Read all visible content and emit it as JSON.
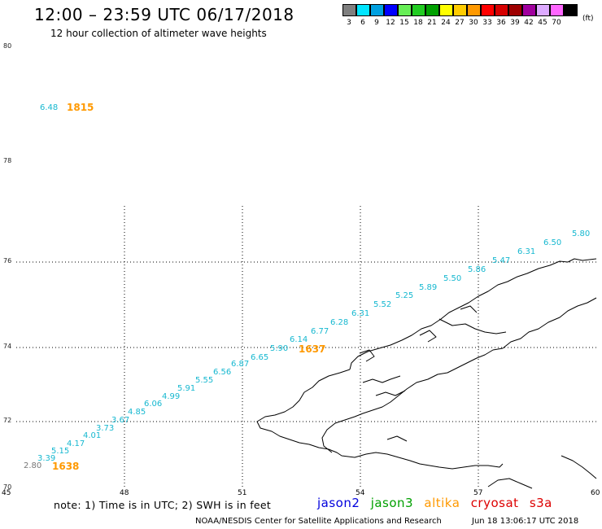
{
  "header": {
    "title": "12:00 – 23:59 UTC 06/17/2018",
    "subtitle": "12 hour collection of altimeter wave heights"
  },
  "legend_scale": {
    "swatches": [
      {
        "color": "#7f7f7f",
        "label": "3"
      },
      {
        "color": "#00e5ff",
        "label": "6"
      },
      {
        "color": "#00a0e0",
        "label": "9"
      },
      {
        "color": "#0000ff",
        "label": "12"
      },
      {
        "color": "#66ee55",
        "label": "15"
      },
      {
        "color": "#22cc22",
        "label": "18"
      },
      {
        "color": "#00a000",
        "label": "21"
      },
      {
        "color": "#ffff00",
        "label": "24"
      },
      {
        "color": "#ffcc00",
        "label": "27"
      },
      {
        "color": "#ff9900",
        "label": "30"
      },
      {
        "color": "#ff0000",
        "label": "33"
      },
      {
        "color": "#d60000",
        "label": "36"
      },
      {
        "color": "#9e0000",
        "label": "39"
      },
      {
        "color": "#a0009e",
        "label": "42"
      },
      {
        "color": "#ddaaff",
        "label": "45"
      },
      {
        "color": "#ff66ff",
        "label": "70"
      },
      {
        "color": "#000000",
        "label": ""
      }
    ],
    "unit": "(ft)"
  },
  "axes": {
    "lat_labels": [
      "80",
      "78",
      "76",
      "74",
      "72",
      "70"
    ],
    "lon_labels": [
      "45",
      "48",
      "51",
      "54",
      "57",
      "60"
    ]
  },
  "observations": [
    {
      "t": "6.48",
      "c": "#16b8d0"
    },
    {
      "t": "1815",
      "c": "#ff9900",
      "bold": true
    },
    {
      "t": "5.80",
      "c": "#16b8d0"
    },
    {
      "t": "6.50",
      "c": "#16b8d0"
    },
    {
      "t": "6.31",
      "c": "#16b8d0"
    },
    {
      "t": "5.47",
      "c": "#16b8d0"
    },
    {
      "t": "5.86",
      "c": "#16b8d0"
    },
    {
      "t": "5.50",
      "c": "#16b8d0"
    },
    {
      "t": "5.89",
      "c": "#16b8d0"
    },
    {
      "t": "5.25",
      "c": "#16b8d0"
    },
    {
      "t": "5.52",
      "c": "#16b8d0"
    },
    {
      "t": "6.31",
      "c": "#16b8d0"
    },
    {
      "t": "6.28",
      "c": "#16b8d0"
    },
    {
      "t": "6.77",
      "c": "#16b8d0"
    },
    {
      "t": "6.14",
      "c": "#16b8d0"
    },
    {
      "t": "5.90",
      "c": "#16b8d0"
    },
    {
      "t": "1637",
      "c": "#ff9900",
      "bold": true
    },
    {
      "t": "6.65",
      "c": "#16b8d0"
    },
    {
      "t": "6.87",
      "c": "#16b8d0"
    },
    {
      "t": "6.56",
      "c": "#16b8d0"
    },
    {
      "t": "5.55",
      "c": "#16b8d0"
    },
    {
      "t": "5.91",
      "c": "#16b8d0"
    },
    {
      "t": "4.99",
      "c": "#16b8d0"
    },
    {
      "t": "6.06",
      "c": "#16b8d0"
    },
    {
      "t": "4.85",
      "c": "#16b8d0"
    },
    {
      "t": "3.67",
      "c": "#16b8d0"
    },
    {
      "t": "3.73",
      "c": "#16b8d0"
    },
    {
      "t": "4.01",
      "c": "#16b8d0"
    },
    {
      "t": "4.17",
      "c": "#16b8d0"
    },
    {
      "t": "5.15",
      "c": "#16b8d0"
    },
    {
      "t": "3.39",
      "c": "#16b8d0"
    },
    {
      "t": "2.80",
      "c": "#777777"
    },
    {
      "t": "1638",
      "c": "#ff9900",
      "bold": true
    }
  ],
  "footer": {
    "note": "note:  1) Time is in UTC;  2) SWH is in feet",
    "satellites": [
      {
        "name": "jason2",
        "color": "#0000dd"
      },
      {
        "name": "jason3",
        "color": "#00a000"
      },
      {
        "name": "altika",
        "color": "#ff9900"
      },
      {
        "name": "cryosat",
        "color": "#dd0000"
      },
      {
        "name": "s3a",
        "color": "#dd0000"
      }
    ],
    "credit": "NOAA/NESDIS Center for Satellite Applications and Research",
    "timestamp": "Jun 18 13:06:17 UTC 2018"
  }
}
